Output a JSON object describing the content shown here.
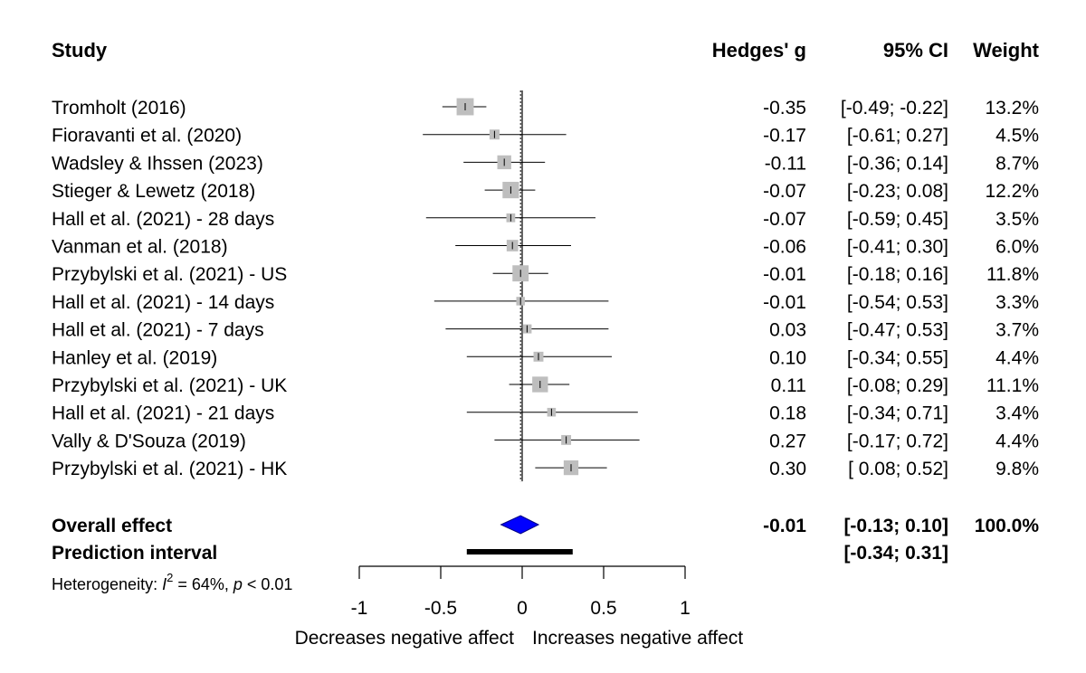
{
  "chart_data": {
    "type": "forest",
    "headers": {
      "study": "Study",
      "effect": "Hedges' g",
      "ci": "95% CI",
      "weight": "Weight"
    },
    "xlim": [
      -1,
      1
    ],
    "x_ticks": [
      -1,
      -0.5,
      0,
      0.5,
      1
    ],
    "x_tick_labels": [
      "-1",
      "-0.5",
      "0",
      "0.5",
      "1"
    ],
    "xlabel_left": "Decreases negative affect",
    "xlabel_right": "Increases negative affect",
    "studies": [
      {
        "name": "Tromholt (2016)",
        "g": -0.35,
        "lo": -0.49,
        "hi": -0.22,
        "weight": 13.2,
        "g_text": "-0.35",
        "ci_text": "[-0.49; -0.22]",
        "weight_text": "13.2%"
      },
      {
        "name": "Fioravanti et al. (2020)",
        "g": -0.17,
        "lo": -0.61,
        "hi": 0.27,
        "weight": 4.5,
        "g_text": "-0.17",
        "ci_text": "[-0.61;  0.27]",
        "weight_text": "4.5%"
      },
      {
        "name": "Wadsley & Ihssen (2023)",
        "g": -0.11,
        "lo": -0.36,
        "hi": 0.14,
        "weight": 8.7,
        "g_text": "-0.11",
        "ci_text": "[-0.36;  0.14]",
        "weight_text": "8.7%"
      },
      {
        "name": "Stieger & Lewetz (2018)",
        "g": -0.07,
        "lo": -0.23,
        "hi": 0.08,
        "weight": 12.2,
        "g_text": "-0.07",
        "ci_text": "[-0.23;  0.08]",
        "weight_text": "12.2%"
      },
      {
        "name": "Hall et al. (2021) - 28 days",
        "g": -0.07,
        "lo": -0.59,
        "hi": 0.45,
        "weight": 3.5,
        "g_text": "-0.07",
        "ci_text": "[-0.59;  0.45]",
        "weight_text": "3.5%"
      },
      {
        "name": "Vanman et al. (2018)",
        "g": -0.06,
        "lo": -0.41,
        "hi": 0.3,
        "weight": 6.0,
        "g_text": "-0.06",
        "ci_text": "[-0.41;  0.30]",
        "weight_text": "6.0%"
      },
      {
        "name": "Przybylski et al. (2021) - US",
        "g": -0.01,
        "lo": -0.18,
        "hi": 0.16,
        "weight": 11.8,
        "g_text": "-0.01",
        "ci_text": "[-0.18;  0.16]",
        "weight_text": "11.8%"
      },
      {
        "name": "Hall et al. (2021) - 14 days",
        "g": -0.01,
        "lo": -0.54,
        "hi": 0.53,
        "weight": 3.3,
        "g_text": "-0.01",
        "ci_text": "[-0.54;  0.53]",
        "weight_text": "3.3%"
      },
      {
        "name": "Hall et al. (2021) - 7 days",
        "g": 0.03,
        "lo": -0.47,
        "hi": 0.53,
        "weight": 3.7,
        "g_text": "0.03",
        "ci_text": "[-0.47;  0.53]",
        "weight_text": "3.7%"
      },
      {
        "name": "Hanley et al. (2019)",
        "g": 0.1,
        "lo": -0.34,
        "hi": 0.55,
        "weight": 4.4,
        "g_text": "0.10",
        "ci_text": "[-0.34;  0.55]",
        "weight_text": "4.4%"
      },
      {
        "name": "Przybylski et al. (2021) - UK",
        "g": 0.11,
        "lo": -0.08,
        "hi": 0.29,
        "weight": 11.1,
        "g_text": "0.11",
        "ci_text": "[-0.08;  0.29]",
        "weight_text": "11.1%"
      },
      {
        "name": "Hall et al. (2021) - 21 days",
        "g": 0.18,
        "lo": -0.34,
        "hi": 0.71,
        "weight": 3.4,
        "g_text": "0.18",
        "ci_text": "[-0.34;  0.71]",
        "weight_text": "3.4%"
      },
      {
        "name": "Vally & D'Souza (2019)",
        "g": 0.27,
        "lo": -0.17,
        "hi": 0.72,
        "weight": 4.4,
        "g_text": "0.27",
        "ci_text": "[-0.17;  0.72]",
        "weight_text": "4.4%"
      },
      {
        "name": "Przybylski et al. (2021) - HK",
        "g": 0.3,
        "lo": 0.08,
        "hi": 0.52,
        "weight": 9.8,
        "g_text": "0.30",
        "ci_text": "[ 0.08;  0.52]",
        "weight_text": "9.8%"
      }
    ],
    "overall": {
      "label": "Overall effect",
      "g": -0.01,
      "lo": -0.13,
      "hi": 0.1,
      "g_text": "-0.01",
      "ci_text": "[-0.13;  0.10]",
      "weight_text": "100.0%"
    },
    "prediction": {
      "label": "Prediction interval",
      "lo": -0.34,
      "hi": 0.31,
      "ci_text": "[-0.34;  0.31]"
    },
    "heterogeneity": {
      "prefix": "Heterogeneity: ",
      "i_symbol": "I",
      "i_exp": "2",
      "i_value": " = 64%, ",
      "p_symbol": "p",
      "p_value": " < 0.01"
    },
    "colors": {
      "square": "#bebebe",
      "diamond": "#0000ff",
      "line": "#000000"
    }
  }
}
